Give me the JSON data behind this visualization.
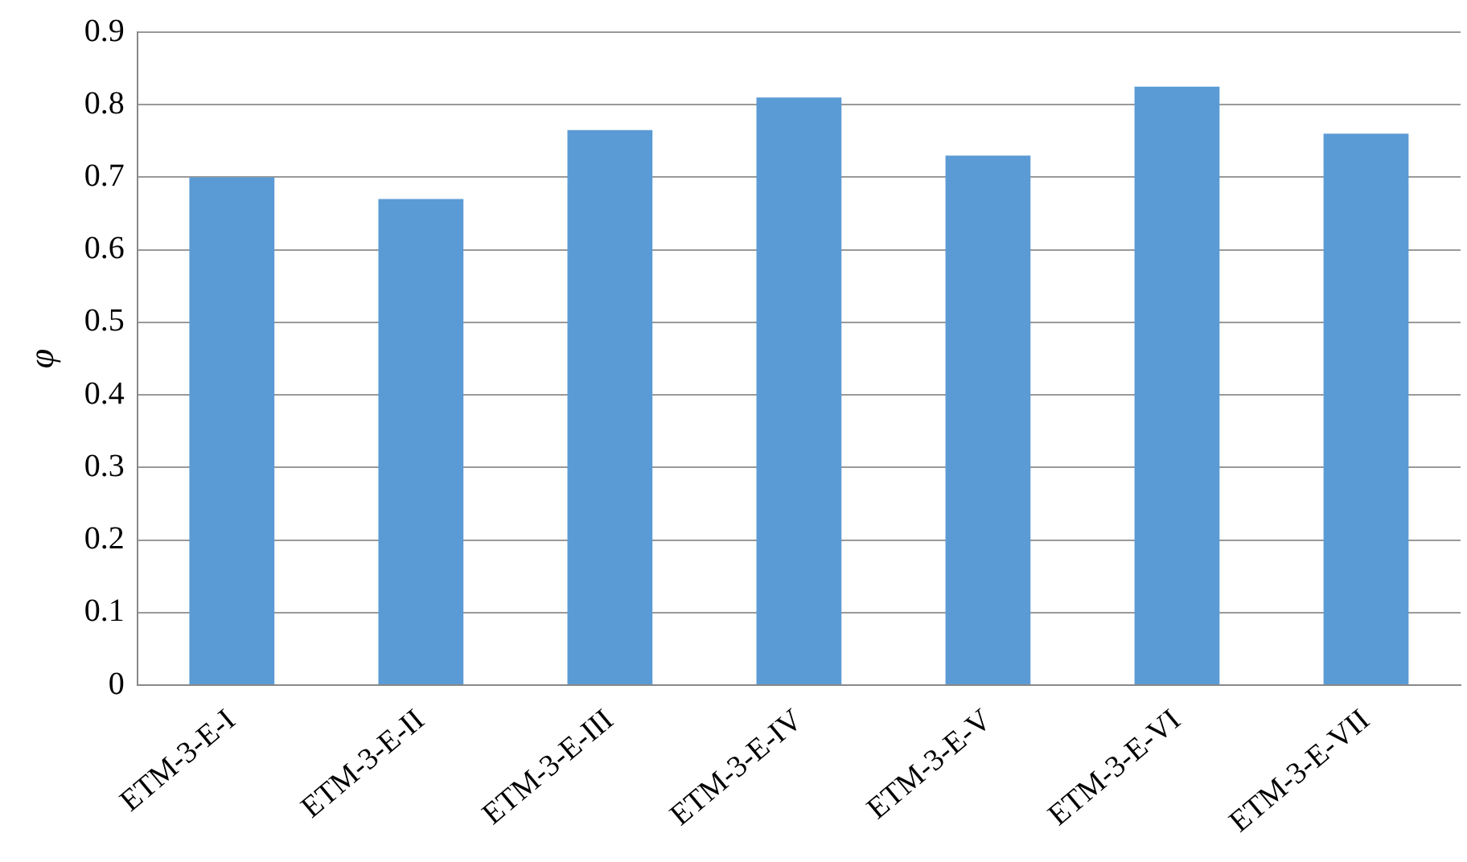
{
  "chart_data": {
    "type": "bar",
    "ylabel": "φ",
    "categories": [
      "ETM-3-E-I",
      "ETM-3-E-II",
      "ETM-3-E-III",
      "ETM-3-E-IV",
      "ETM-3-E-V",
      "ETM-3-E-VI",
      "ETM-3-E-VII"
    ],
    "values": [
      0.7,
      0.67,
      0.765,
      0.81,
      0.73,
      0.825,
      0.76
    ],
    "color": "#5b9bd5",
    "ylim": [
      0,
      0.9
    ],
    "yticks": [
      0,
      0.1,
      0.2,
      0.3,
      0.4,
      0.5,
      0.6,
      0.7,
      0.8,
      0.9
    ],
    "grid": "y"
  }
}
